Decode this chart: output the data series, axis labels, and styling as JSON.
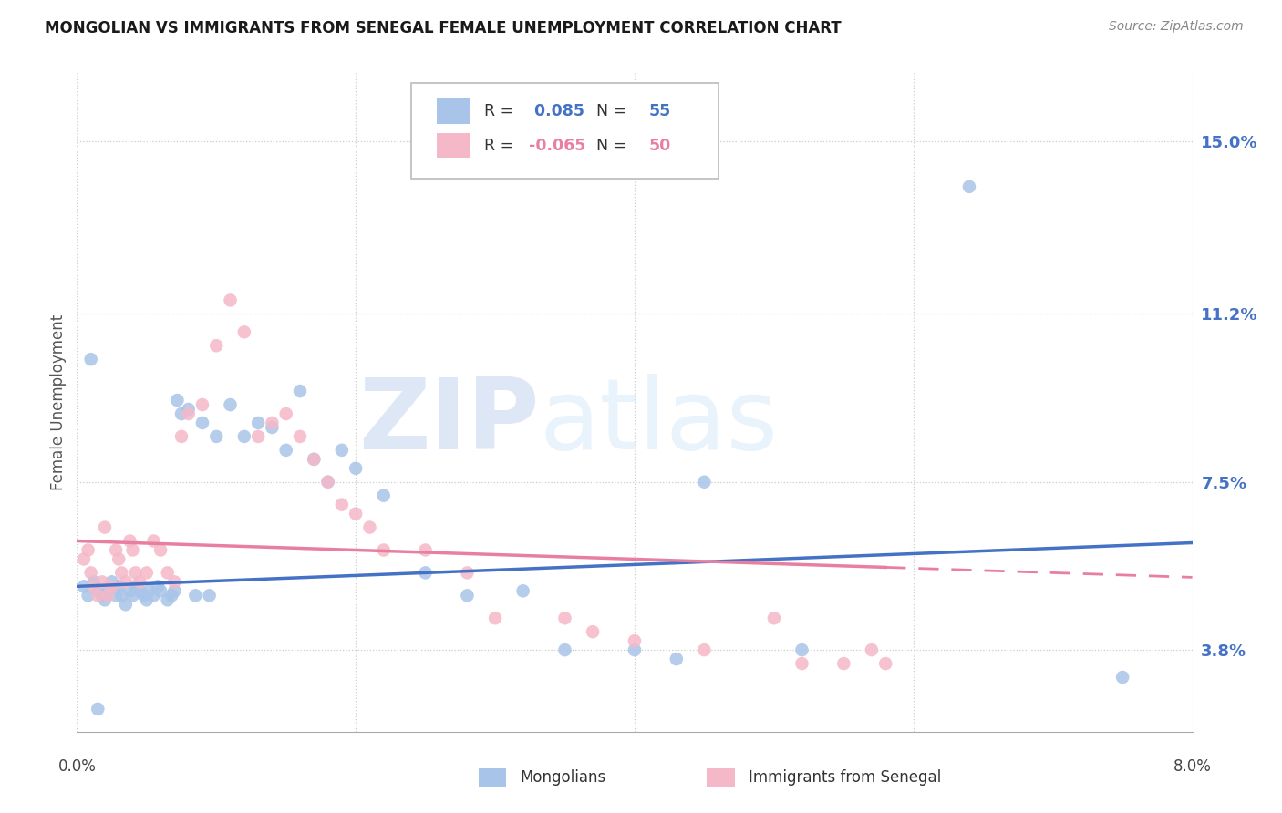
{
  "title": "MONGOLIAN VS IMMIGRANTS FROM SENEGAL FEMALE UNEMPLOYMENT CORRELATION CHART",
  "source": "Source: ZipAtlas.com",
  "ylabel": "Female Unemployment",
  "y_ticks": [
    3.8,
    7.5,
    11.2,
    15.0
  ],
  "xlim": [
    0.0,
    8.0
  ],
  "ylim": [
    2.0,
    16.5
  ],
  "legend_blue_r": "0.085",
  "legend_blue_n": "55",
  "legend_pink_r": "-0.065",
  "legend_pink_n": "50",
  "legend_label_blue": "Mongolians",
  "legend_label_pink": "Immigrants from Senegal",
  "blue_color": "#a8c4e8",
  "pink_color": "#f5b8c8",
  "blue_line_color": "#4472c4",
  "pink_line_color": "#e87fa0",
  "watermark_zip_color": "#c8d8f0",
  "watermark_atlas_color": "#d8e8f8",
  "blue_x": [
    0.05,
    0.08,
    0.1,
    0.12,
    0.15,
    0.18,
    0.2,
    0.22,
    0.25,
    0.28,
    0.3,
    0.32,
    0.35,
    0.38,
    0.4,
    0.42,
    0.45,
    0.48,
    0.5,
    0.52,
    0.55,
    0.58,
    0.6,
    0.65,
    0.68,
    0.7,
    0.72,
    0.75,
    0.8,
    0.85,
    0.9,
    0.95,
    1.0,
    1.1,
    1.2,
    1.3,
    1.4,
    1.5,
    1.6,
    1.7,
    1.8,
    1.9,
    2.0,
    2.2,
    2.5,
    2.8,
    3.2,
    3.5,
    4.0,
    4.3,
    4.5,
    5.2,
    6.4,
    7.5,
    0.15
  ],
  "blue_y": [
    5.2,
    5.0,
    10.2,
    5.3,
    5.1,
    5.0,
    4.9,
    5.1,
    5.3,
    5.0,
    5.2,
    5.0,
    4.8,
    5.1,
    5.0,
    5.2,
    5.1,
    5.0,
    4.9,
    5.1,
    5.0,
    5.2,
    5.1,
    4.9,
    5.0,
    5.1,
    9.3,
    9.0,
    9.1,
    5.0,
    8.8,
    5.0,
    8.5,
    9.2,
    8.5,
    8.8,
    8.7,
    8.2,
    9.5,
    8.0,
    7.5,
    8.2,
    7.8,
    7.2,
    5.5,
    5.0,
    5.1,
    3.8,
    3.8,
    3.6,
    7.5,
    3.8,
    14.0,
    3.2,
    2.5
  ],
  "pink_x": [
    0.05,
    0.08,
    0.1,
    0.12,
    0.15,
    0.18,
    0.2,
    0.22,
    0.25,
    0.28,
    0.3,
    0.32,
    0.35,
    0.38,
    0.4,
    0.42,
    0.45,
    0.5,
    0.55,
    0.6,
    0.65,
    0.7,
    0.75,
    0.8,
    0.9,
    1.0,
    1.1,
    1.2,
    1.3,
    1.4,
    1.5,
    1.6,
    1.7,
    1.8,
    1.9,
    2.0,
    2.1,
    2.2,
    2.5,
    2.8,
    3.0,
    3.5,
    3.7,
    4.0,
    4.5,
    5.0,
    5.2,
    5.5,
    5.7,
    5.8
  ],
  "pink_y": [
    5.8,
    6.0,
    5.5,
    5.2,
    5.0,
    5.3,
    6.5,
    5.0,
    5.2,
    6.0,
    5.8,
    5.5,
    5.3,
    6.2,
    6.0,
    5.5,
    5.3,
    5.5,
    6.2,
    6.0,
    5.5,
    5.3,
    8.5,
    9.0,
    9.2,
    10.5,
    11.5,
    10.8,
    8.5,
    8.8,
    9.0,
    8.5,
    8.0,
    7.5,
    7.0,
    6.8,
    6.5,
    6.0,
    6.0,
    5.5,
    4.5,
    4.5,
    4.2,
    4.0,
    3.8,
    4.5,
    3.5,
    3.5,
    3.8,
    3.5
  ],
  "blue_reg_intercept": 5.2,
  "blue_reg_slope": 0.12,
  "pink_reg_intercept": 6.2,
  "pink_reg_slope": -0.1
}
